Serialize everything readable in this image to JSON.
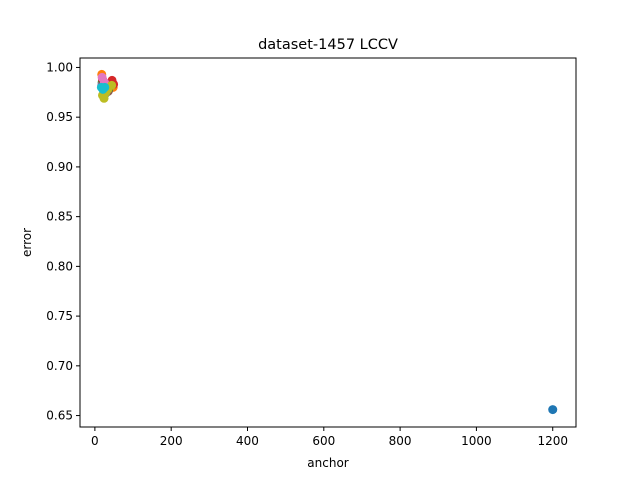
{
  "chart_data": {
    "type": "scatter",
    "title": "dataset-1457 LCCV",
    "xlabel": "anchor",
    "ylabel": "error",
    "xlim": [
      -39,
      1261
    ],
    "ylim": [
      0.6385,
      1.0095
    ],
    "xticks": [
      0,
      200,
      400,
      600,
      800,
      1000,
      1200
    ],
    "yticks": [
      0.65,
      0.7,
      0.75,
      0.8,
      0.85,
      0.9,
      0.95,
      1.0
    ],
    "ytick_labels": [
      "0.65",
      "0.70",
      "0.75",
      "0.80",
      "0.85",
      "0.90",
      "0.95",
      "1.00"
    ],
    "grid": false,
    "series": [
      {
        "color": "#1f77b4",
        "points": [
          [
            20,
            0.98
          ],
          [
            23,
            0.978
          ],
          [
            1200,
            0.656
          ]
        ]
      },
      {
        "color": "#ff7f0e",
        "points": [
          [
            18,
            0.993
          ],
          [
            22,
            0.986
          ],
          [
            25,
            0.982
          ],
          [
            32,
            0.979
          ],
          [
            40,
            0.984
          ],
          [
            48,
            0.98
          ]
        ]
      },
      {
        "color": "#2ca02c",
        "points": [
          [
            19,
            0.985
          ],
          [
            24,
            0.979
          ],
          [
            28,
            0.974
          ],
          [
            36,
            0.977
          ]
        ]
      },
      {
        "color": "#d62728",
        "points": [
          [
            20,
            0.988
          ],
          [
            26,
            0.984
          ],
          [
            33,
            0.981
          ],
          [
            45,
            0.987
          ],
          [
            49,
            0.983
          ]
        ]
      },
      {
        "color": "#9467bd",
        "points": [
          [
            18,
            0.982
          ],
          [
            23,
            0.977
          ],
          [
            30,
            0.975
          ]
        ]
      },
      {
        "color": "#8c564b",
        "points": [
          [
            21,
            0.983
          ],
          [
            27,
            0.98
          ],
          [
            35,
            0.976
          ]
        ]
      },
      {
        "color": "#e377c2",
        "points": [
          [
            19,
            0.99
          ],
          [
            25,
            0.985
          ],
          [
            31,
            0.982
          ]
        ]
      },
      {
        "color": "#7f7f7f",
        "points": [
          [
            22,
            0.979
          ],
          [
            28,
            0.976
          ]
        ]
      },
      {
        "color": "#bcbd22",
        "points": [
          [
            20,
            0.972
          ],
          [
            24,
            0.969
          ],
          [
            29,
            0.975
          ],
          [
            34,
            0.978
          ],
          [
            44,
            0.982
          ]
        ]
      },
      {
        "color": "#17becf",
        "points": [
          [
            17,
            0.98
          ],
          [
            21,
            0.978
          ],
          [
            26,
            0.98
          ]
        ]
      }
    ]
  }
}
